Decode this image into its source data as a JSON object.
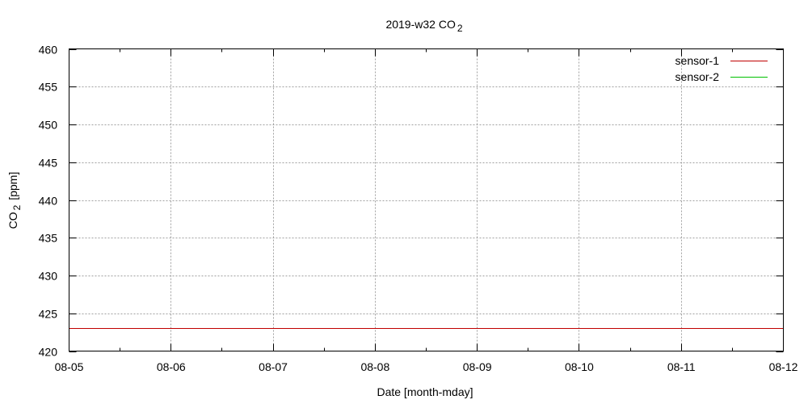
{
  "chart_data": {
    "type": "line",
    "title": "2019-w32 CO",
    "title_sub": "2",
    "xlabel": "Date [month-mday]",
    "ylabel": "CO",
    "ylabel_sub": "2",
    "ylabel_unit": "[ppm]",
    "x_ticks": [
      "08-05",
      "08-06",
      "08-07",
      "08-08",
      "08-09",
      "08-10",
      "08-11",
      "08-12"
    ],
    "xlim": [
      "2019-08-05",
      "2019-08-12"
    ],
    "y_ticks": [
      420,
      425,
      430,
      435,
      440,
      445,
      450,
      455,
      460
    ],
    "ylim": [
      420,
      460
    ],
    "grid": true,
    "legend_position": "top-right",
    "series": [
      {
        "name": "sensor-1",
        "color": "#c00000",
        "x": [
          "2019-08-05",
          "2019-08-12"
        ],
        "values": [
          423,
          423
        ]
      },
      {
        "name": "sensor-2",
        "color": "#00c000",
        "x": [],
        "values": []
      }
    ]
  }
}
